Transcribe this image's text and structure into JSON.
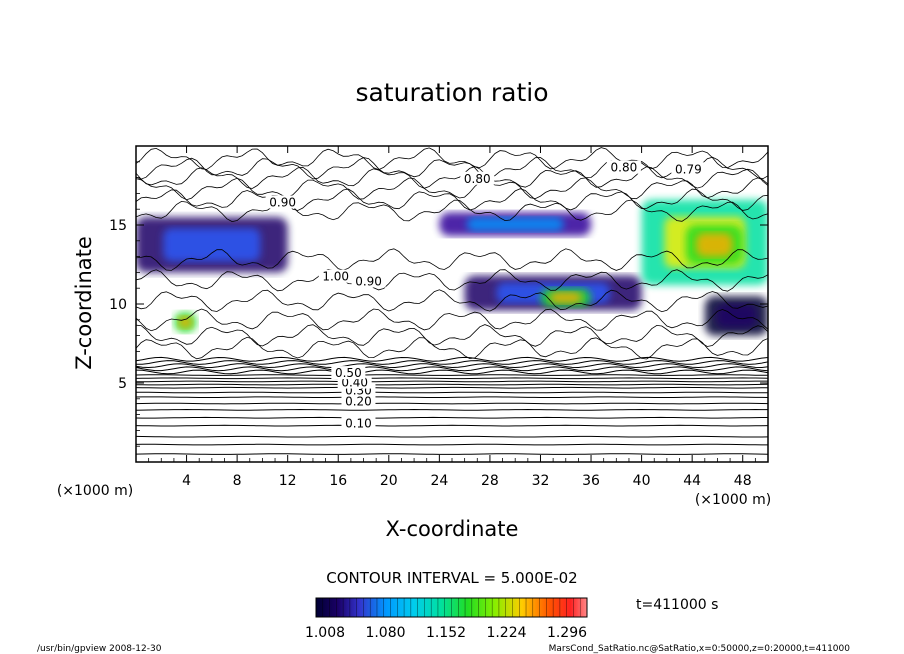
{
  "chart_data": {
    "type": "contour",
    "title": "saturation ratio",
    "xlabel": "X-coordinate",
    "ylabel": "Z-coordinate",
    "x_unit": "(×1000 m)",
    "z_unit": "(×1000 m)",
    "xlim": [
      0,
      50
    ],
    "ylim": [
      0,
      20
    ],
    "xticks": [
      4,
      8,
      12,
      16,
      20,
      24,
      28,
      32,
      36,
      40,
      44,
      48
    ],
    "yticks": [
      5,
      10,
      15
    ],
    "contour_interval_text": "CONTOUR INTERVAL = 5.000E-02",
    "contour_interval": 0.05,
    "contour_labels": [
      {
        "text": "0.10",
        "x": 17.6,
        "z": 2.3
      },
      {
        "text": "0.20",
        "x": 17.6,
        "z": 3.7
      },
      {
        "text": "0.30",
        "x": 17.6,
        "z": 4.4
      },
      {
        "text": "0.40",
        "x": 17.3,
        "z": 4.9
      },
      {
        "text": "0.50",
        "x": 16.8,
        "z": 5.5
      },
      {
        "text": "0.80",
        "x": 27.0,
        "z": 17.8
      },
      {
        "text": "0.80",
        "x": 38.6,
        "z": 18.5
      },
      {
        "text": "0.90",
        "x": 18.4,
        "z": 11.3
      },
      {
        "text": "1.00",
        "x": 15.8,
        "z": 11.6
      },
      {
        "text": "0.79",
        "x": 43.7,
        "z": 18.4
      },
      {
        "text": "0.90",
        "x": 11.6,
        "z": 16.3
      }
    ],
    "colorbar": {
      "ticks": [
        "1.008",
        "1.080",
        "1.152",
        "1.224",
        "1.296"
      ],
      "min": 1.008,
      "max": 1.332,
      "colormap": [
        "#000033",
        "#1a0066",
        "#2e0099",
        "#3333cc",
        "#2a5cff",
        "#0099ff",
        "#00ccee",
        "#00e0a0",
        "#22dd22",
        "#88ee00",
        "#ffee00",
        "#ffaa00",
        "#ff5500",
        "#ff2222",
        "#ff7777"
      ]
    },
    "time_label": "t=411000 s",
    "regions": [
      {
        "value": 1.12,
        "x": [
          0,
          12
        ],
        "z": [
          12,
          15.5
        ]
      },
      {
        "value": 1.16,
        "x": [
          24,
          36
        ],
        "z": [
          14.3,
          15.8
        ]
      },
      {
        "value": 1.12,
        "x": [
          26,
          40
        ],
        "z": [
          9.6,
          11.8
        ]
      },
      {
        "value": 1.28,
        "x": [
          40,
          50
        ],
        "z": [
          11.2,
          16.6
        ]
      },
      {
        "value": 1.3,
        "x": [
          3,
          4.8
        ],
        "z": [
          8.2,
          9.5
        ]
      },
      {
        "value": 1.3,
        "x": [
          32,
          36
        ],
        "z": [
          9.8,
          11
        ]
      },
      {
        "value": 1.3,
        "x": [
          43.5,
          48
        ],
        "z": [
          12.5,
          15
        ]
      },
      {
        "value": 1.05,
        "x": [
          45,
          50
        ],
        "z": [
          8,
          10.5
        ]
      }
    ]
  },
  "footer": {
    "left": "/usr/bin/gpview   2008-12-30",
    "right": "MarsCond_SatRatio.nc@SatRatio,x=0:50000,z=0:20000,t=411000"
  }
}
